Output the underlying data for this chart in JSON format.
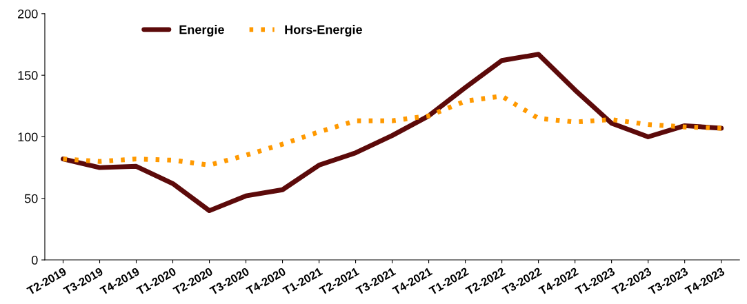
{
  "chart_data": {
    "type": "line",
    "categories": [
      "T2-2019",
      "T3-2019",
      "T4-2019",
      "T1-2020",
      "T2-2020",
      "T3-2020",
      "T4-2020",
      "T1-2021",
      "T2-2021",
      "T3-2021",
      "T4-2021",
      "T1-2022",
      "T2-2022",
      "T3-2022",
      "T4-2022",
      "T1-2023",
      "T2-2023",
      "T3-2023",
      "T4-2023"
    ],
    "series": [
      {
        "name": "Energie",
        "color": "#5c0a0a",
        "line_style": "solid",
        "values": [
          82,
          75,
          76,
          62,
          40,
          52,
          57,
          77,
          87,
          101,
          117,
          140,
          162,
          167,
          138,
          111,
          100,
          109,
          107
        ]
      },
      {
        "name": "Hors-Energie",
        "color": "#ff9900",
        "line_style": "dotted",
        "values": [
          82,
          80,
          82,
          81,
          77,
          85,
          94,
          104,
          113,
          113,
          117,
          129,
          133,
          115,
          112,
          114,
          110,
          108,
          107
        ]
      }
    ],
    "ylim": [
      0,
      200
    ],
    "yticks": [
      0,
      50,
      100,
      150,
      200
    ],
    "grid": false,
    "legend": "top",
    "marker": "none"
  }
}
